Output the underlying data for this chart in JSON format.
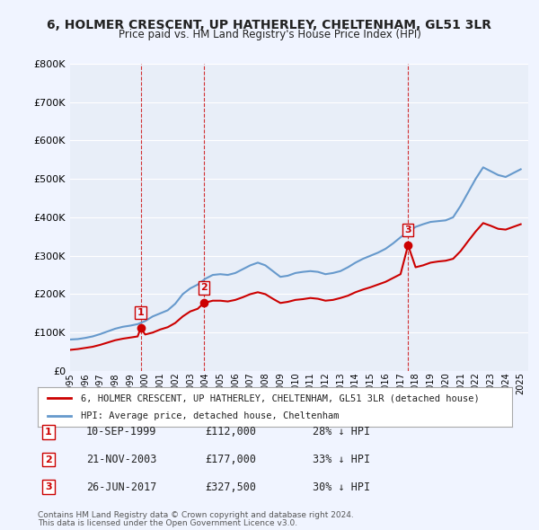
{
  "title": "6, HOLMER CRESCENT, UP HATHERLEY, CHELTENHAM, GL51 3LR",
  "subtitle": "Price paid vs. HM Land Registry's House Price Index (HPI)",
  "legend_line1": "6, HOLMER CRESCENT, UP HATHERLEY, CHELTENHAM, GL51 3LR (detached house)",
  "legend_line2": "HPI: Average price, detached house, Cheltenham",
  "footer1": "Contains HM Land Registry data © Crown copyright and database right 2024.",
  "footer2": "This data is licensed under the Open Government Licence v3.0.",
  "transactions": [
    {
      "index": 1,
      "date": "10-SEP-1999",
      "price": 112000,
      "label": "28% ↓ HPI",
      "year": 1999.7
    },
    {
      "index": 2,
      "date": "21-NOV-2003",
      "price": 177000,
      "label": "33% ↓ HPI",
      "year": 2003.9
    },
    {
      "index": 3,
      "date": "26-JUN-2017",
      "price": 327500,
      "label": "30% ↓ HPI",
      "year": 2017.5
    }
  ],
  "hpi_color": "#6699cc",
  "price_color": "#cc0000",
  "vline_color": "#cc0000",
  "bg_color": "#f0f4ff",
  "plot_bg": "#e8eef8",
  "grid_color": "#ffffff",
  "ylim": [
    0,
    800000
  ],
  "xlim_start": 1995.0,
  "xlim_end": 2025.5,
  "hpi_data": {
    "x": [
      1995.0,
      1995.5,
      1996.0,
      1996.5,
      1997.0,
      1997.5,
      1998.0,
      1998.5,
      1999.0,
      1999.5,
      2000.0,
      2000.5,
      2001.0,
      2001.5,
      2002.0,
      2002.5,
      2003.0,
      2003.5,
      2004.0,
      2004.5,
      2005.0,
      2005.5,
      2006.0,
      2006.5,
      2007.0,
      2007.5,
      2008.0,
      2008.5,
      2009.0,
      2009.5,
      2010.0,
      2010.5,
      2011.0,
      2011.5,
      2012.0,
      2012.5,
      2013.0,
      2013.5,
      2014.0,
      2014.5,
      2015.0,
      2015.5,
      2016.0,
      2016.5,
      2017.0,
      2017.5,
      2018.0,
      2018.5,
      2019.0,
      2019.5,
      2020.0,
      2020.5,
      2021.0,
      2021.5,
      2022.0,
      2022.5,
      2023.0,
      2023.5,
      2024.0,
      2024.5,
      2025.0
    ],
    "y": [
      82000,
      83000,
      86000,
      90000,
      96000,
      103000,
      110000,
      115000,
      118000,
      122000,
      130000,
      142000,
      150000,
      158000,
      175000,
      200000,
      215000,
      225000,
      240000,
      250000,
      252000,
      250000,
      255000,
      265000,
      275000,
      282000,
      275000,
      260000,
      245000,
      248000,
      255000,
      258000,
      260000,
      258000,
      252000,
      255000,
      260000,
      270000,
      282000,
      292000,
      300000,
      308000,
      318000,
      332000,
      348000,
      362000,
      375000,
      382000,
      388000,
      390000,
      392000,
      400000,
      430000,
      465000,
      500000,
      530000,
      520000,
      510000,
      505000,
      515000,
      525000
    ]
  },
  "price_data": {
    "x": [
      1995.0,
      1995.5,
      1996.0,
      1996.5,
      1997.0,
      1997.5,
      1998.0,
      1998.5,
      1999.0,
      1999.5,
      1999.7,
      2000.0,
      2000.5,
      2001.0,
      2001.5,
      2002.0,
      2002.5,
      2003.0,
      2003.5,
      2003.9,
      2004.0,
      2004.5,
      2005.0,
      2005.5,
      2006.0,
      2006.5,
      2007.0,
      2007.5,
      2008.0,
      2008.5,
      2009.0,
      2009.5,
      2010.0,
      2010.5,
      2011.0,
      2011.5,
      2012.0,
      2012.5,
      2013.0,
      2013.5,
      2014.0,
      2014.5,
      2015.0,
      2015.5,
      2016.0,
      2016.5,
      2017.0,
      2017.5,
      2017.5,
      2018.0,
      2018.5,
      2019.0,
      2019.5,
      2020.0,
      2020.5,
      2021.0,
      2021.5,
      2022.0,
      2022.5,
      2023.0,
      2023.5,
      2024.0,
      2024.5,
      2025.0
    ],
    "y": [
      55000,
      57000,
      60000,
      63000,
      68000,
      74000,
      80000,
      84000,
      87000,
      90000,
      112000,
      95000,
      100000,
      108000,
      114000,
      125000,
      142000,
      155000,
      162000,
      177000,
      178000,
      183000,
      183000,
      181000,
      185000,
      192000,
      200000,
      205000,
      200000,
      188000,
      177000,
      180000,
      185000,
      187000,
      190000,
      188000,
      183000,
      185000,
      190000,
      196000,
      205000,
      212000,
      218000,
      225000,
      232000,
      242000,
      252000,
      327500,
      327500,
      270000,
      275000,
      282000,
      285000,
      287000,
      292000,
      312000,
      338000,
      363000,
      385000,
      378000,
      370000,
      368000,
      375000,
      382000
    ]
  }
}
